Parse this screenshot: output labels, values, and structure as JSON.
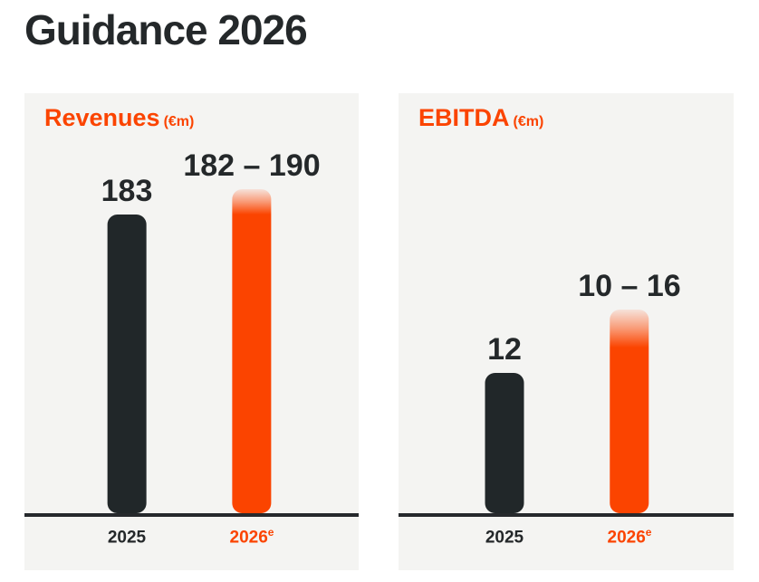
{
  "page": {
    "title": "Guidance 2026"
  },
  "colors": {
    "page_bg": "#ffffff",
    "panel_bg": "#f4f4f2",
    "accent_orange": "#fb4400",
    "bar_dark": "#212729",
    "text_dark": "#24282a",
    "axis_line": "#26292c",
    "fade_top": "#f6e2da",
    "fade_mid": "#f99a76"
  },
  "chart_data": [
    {
      "type": "bar",
      "title": "Revenues",
      "unit": "(€m)",
      "categories": [
        "2025",
        "2026e"
      ],
      "grid": false,
      "legend": "none",
      "baseline_axis": true,
      "bars": [
        {
          "category": "2025",
          "category_sup": "",
          "value": 183,
          "label": "183",
          "style": "solid-dark",
          "height_px": "330px",
          "fade_px": "0px"
        },
        {
          "category": "2026",
          "category_sup": "e",
          "value_min": 182,
          "value_max": 190,
          "label": "182 – 190",
          "style": "orange-gradient-top",
          "height_px": "358px",
          "fade_px": "28px"
        }
      ]
    },
    {
      "type": "bar",
      "title": "EBITDA",
      "unit": "(€m)",
      "categories": [
        "2025",
        "2026e"
      ],
      "grid": false,
      "legend": "none",
      "baseline_axis": true,
      "bars": [
        {
          "category": "2025",
          "category_sup": "",
          "value": 12,
          "label": "12",
          "style": "solid-dark",
          "height_px": "155px",
          "fade_px": "0px"
        },
        {
          "category": "2026",
          "category_sup": "e",
          "value_min": 10,
          "value_max": 16,
          "label": "10 – 16",
          "style": "orange-gradient-top",
          "height_px": "225px",
          "fade_px": "42px"
        }
      ]
    }
  ]
}
